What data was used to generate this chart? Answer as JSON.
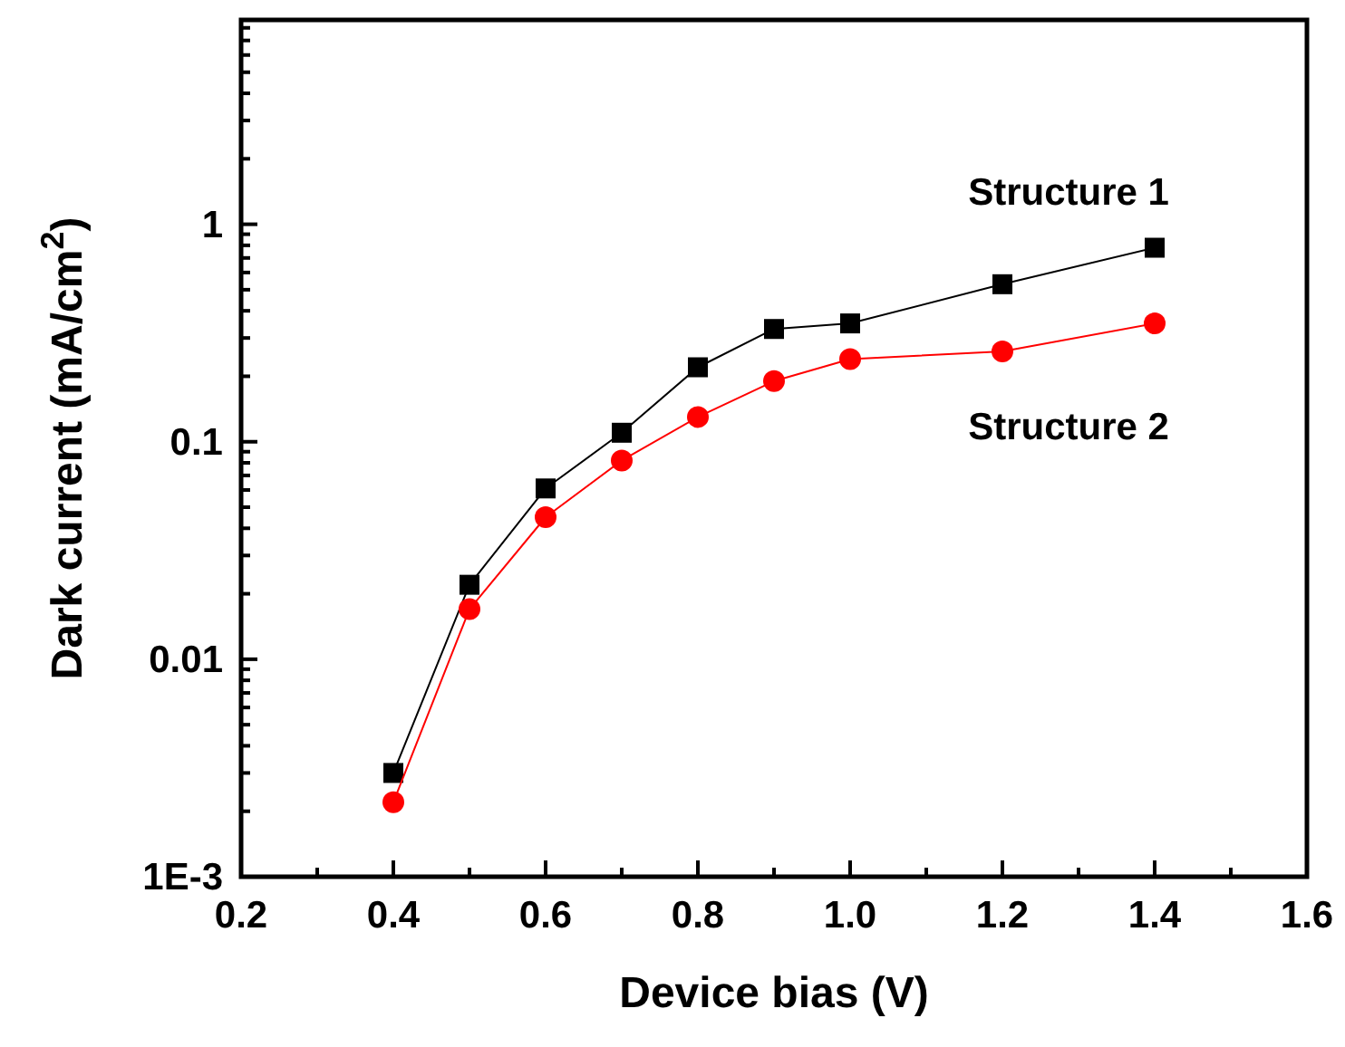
{
  "chart_data": {
    "type": "line",
    "xlabel": "Device bias (V)",
    "ylabel": "Dark current (mA/cm$^{2}$)",
    "log": "y",
    "xlim": [
      0.2,
      1.6
    ],
    "ylim": [
      0.001,
      8.7
    ],
    "xticks": [
      0.2,
      {
        "value": 0.3,
        "label": null
      },
      0.4,
      {
        "value": 0.5,
        "label": null
      },
      0.6,
      {
        "value": 0.7,
        "label": null
      },
      0.8,
      {
        "value": 0.9,
        "label": null
      },
      {
        "value": 1.0,
        "label": "1.0"
      },
      {
        "value": 1.1,
        "label": null
      },
      1.2,
      {
        "value": 1.3,
        "label": null
      },
      1.4,
      {
        "value": 1.5,
        "label": null
      },
      1.6
    ],
    "yticks": [
      {
        "value": 0.001,
        "label": "1E-3"
      },
      {
        "value": 0.002,
        "label": null
      },
      {
        "value": 0.003,
        "label": null
      },
      {
        "value": 0.004,
        "label": null
      },
      {
        "value": 0.005,
        "label": null
      },
      {
        "value": 0.006,
        "label": null
      },
      {
        "value": 0.007,
        "label": null
      },
      {
        "value": 0.008,
        "label": null
      },
      {
        "value": 0.009,
        "label": null
      },
      0.01,
      {
        "value": 0.02,
        "label": null
      },
      {
        "value": 0.03,
        "label": null
      },
      {
        "value": 0.04,
        "label": null
      },
      {
        "value": 0.05,
        "label": null
      },
      {
        "value": 0.06,
        "label": null
      },
      {
        "value": 0.07,
        "label": null
      },
      {
        "value": 0.08,
        "label": null
      },
      {
        "value": 0.09,
        "label": null
      },
      0.1,
      {
        "value": 0.2,
        "label": null
      },
      {
        "value": 0.3,
        "label": null
      },
      {
        "value": 0.4,
        "label": null
      },
      {
        "value": 0.5,
        "label": null
      },
      {
        "value": 0.6,
        "label": null
      },
      {
        "value": 0.7,
        "label": null
      },
      {
        "value": 0.8,
        "label": null
      },
      {
        "value": 0.9,
        "label": null
      },
      1,
      {
        "value": 2,
        "label": null
      },
      {
        "value": 3,
        "label": null
      },
      {
        "value": 4,
        "label": null
      },
      {
        "value": 5,
        "label": null
      },
      {
        "value": 6,
        "label": null
      },
      {
        "value": 7,
        "label": null
      },
      {
        "value": 8,
        "label": null
      }
    ],
    "x": [
      0.4,
      0.5,
      0.6,
      0.7,
      0.8,
      0.9,
      1.0,
      1.2,
      1.4
    ],
    "legend": false,
    "grid": false,
    "series": [
      {
        "name": "Structure 1",
        "color": "#000000",
        "marker": "square",
        "values": [
          0.003,
          0.022,
          0.061,
          0.11,
          0.22,
          0.33,
          0.35,
          0.53,
          0.78
        ]
      },
      {
        "name": "Structure 2",
        "color": "#ff0000",
        "marker": "circle",
        "values": [
          0.0022,
          0.017,
          0.045,
          0.082,
          0.13,
          0.19,
          0.24,
          0.26,
          0.35
        ]
      }
    ]
  }
}
